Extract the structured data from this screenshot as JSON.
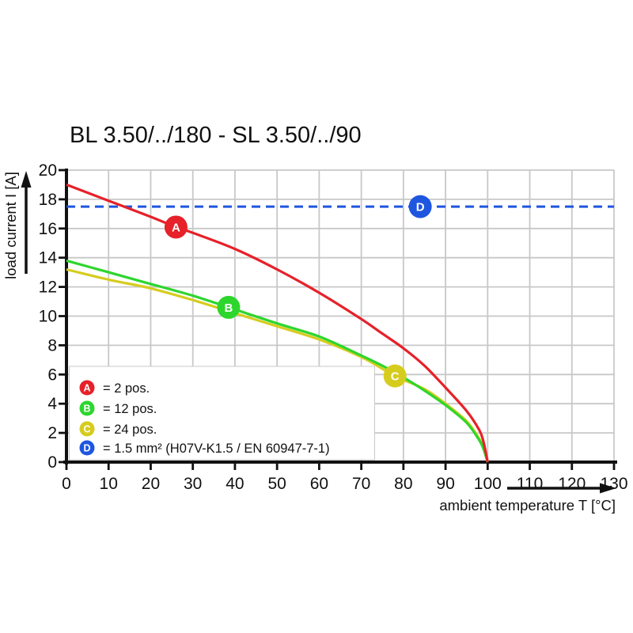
{
  "title": "BL 3.50/../180 - SL 3.50/../90",
  "colors": {
    "red": "#e62129",
    "green": "#2dd62d",
    "yellow": "#d6cc1e",
    "blue": "#1e56e0",
    "grid": "#c8c8c8",
    "axis": "#111111",
    "text": "#111111",
    "legend_box_border": "#c9c9c9",
    "marker_letter": "#ffffff"
  },
  "chart_data": {
    "type": "line",
    "title": "BL 3.50/../180 - SL 3.50/../90",
    "xlabel": "ambient temperature T [°C]",
    "ylabel": "load current I [A]",
    "xlim": [
      0,
      130
    ],
    "ylim": [
      0,
      20
    ],
    "x_ticks": [
      0,
      10,
      20,
      30,
      40,
      50,
      60,
      70,
      80,
      90,
      100,
      110,
      120,
      130
    ],
    "y_ticks": [
      0,
      2,
      4,
      6,
      8,
      10,
      12,
      14,
      16,
      18,
      20
    ],
    "grid": true,
    "legend_position": "bottom-left",
    "series": [
      {
        "id": "A",
        "label": "2 pos.",
        "color": "#e62129",
        "style": "solid",
        "marker": {
          "letter": "A",
          "x": 26,
          "y": 16.1
        },
        "points": [
          [
            0,
            19.0
          ],
          [
            10,
            17.9
          ],
          [
            20,
            16.8
          ],
          [
            26,
            16.1
          ],
          [
            30,
            15.7
          ],
          [
            40,
            14.6
          ],
          [
            50,
            13.2
          ],
          [
            60,
            11.6
          ],
          [
            70,
            9.8
          ],
          [
            75,
            8.8
          ],
          [
            80,
            7.8
          ],
          [
            85,
            6.6
          ],
          [
            90,
            5.1
          ],
          [
            95,
            3.5
          ],
          [
            98,
            2.2
          ],
          [
            99,
            1.4
          ],
          [
            100,
            0
          ]
        ]
      },
      {
        "id": "B",
        "label": "12 pos.",
        "color": "#2dd62d",
        "style": "solid",
        "marker": {
          "letter": "B",
          "x": 38.5,
          "y": 10.6
        },
        "points": [
          [
            0,
            13.8
          ],
          [
            10,
            13.0
          ],
          [
            20,
            12.2
          ],
          [
            30,
            11.4
          ],
          [
            38.5,
            10.6
          ],
          [
            50,
            9.5
          ],
          [
            60,
            8.6
          ],
          [
            70,
            7.3
          ],
          [
            75,
            6.6
          ],
          [
            80,
            5.8
          ],
          [
            85,
            4.9
          ],
          [
            90,
            3.9
          ],
          [
            95,
            2.7
          ],
          [
            98,
            1.5
          ],
          [
            99,
            0.9
          ],
          [
            100,
            0
          ]
        ]
      },
      {
        "id": "C",
        "label": "24 pos.",
        "color": "#d6cc1e",
        "style": "solid",
        "marker": {
          "letter": "C",
          "x": 78,
          "y": 5.9
        },
        "points": [
          [
            0,
            13.2
          ],
          [
            10,
            12.5
          ],
          [
            20,
            11.9
          ],
          [
            30,
            11.1
          ],
          [
            40,
            10.2
          ],
          [
            50,
            9.3
          ],
          [
            60,
            8.4
          ],
          [
            70,
            7.2
          ],
          [
            78,
            5.9
          ],
          [
            85,
            5.0
          ],
          [
            90,
            4.0
          ],
          [
            95,
            2.8
          ],
          [
            98,
            1.6
          ],
          [
            99,
            1.0
          ],
          [
            100,
            0
          ]
        ]
      },
      {
        "id": "D",
        "label": "1.5 mm² (H07V-K1.5 / EN 60947-7-1)",
        "color": "#1e56e0",
        "style": "dashed",
        "marker": {
          "letter": "D",
          "x": 84,
          "y": 17.5
        },
        "points": [
          [
            0,
            17.5
          ],
          [
            130,
            17.5
          ]
        ]
      }
    ],
    "legend": {
      "rows": [
        {
          "letter": "A",
          "color": "#e62129",
          "text": "= 2 pos."
        },
        {
          "letter": "B",
          "color": "#2dd62d",
          "text": "= 12 pos."
        },
        {
          "letter": "C",
          "color": "#d6cc1e",
          "text": "= 24 pos."
        },
        {
          "letter": "D",
          "color": "#1e56e0",
          "text": "= 1.5 mm² (H07V-K1.5 / EN 60947-7-1)"
        }
      ]
    }
  }
}
